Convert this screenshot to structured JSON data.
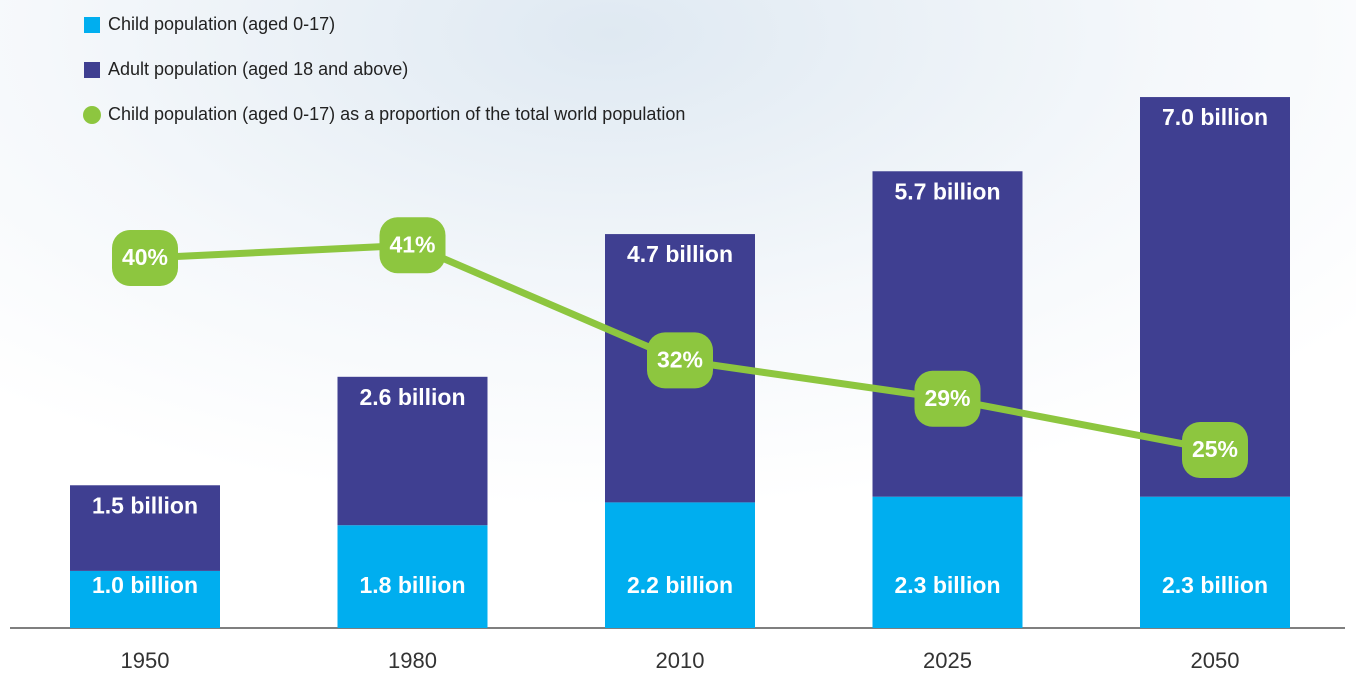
{
  "chart_data": {
    "type": "bar",
    "stacked": true,
    "categories": [
      "1950",
      "1980",
      "2010",
      "2025",
      "2050"
    ],
    "ylim": [
      0,
      11
    ],
    "y2lim": [
      0,
      60
    ],
    "series": [
      {
        "name": "Child population (aged 0-17)",
        "color": "#00aeef",
        "values": [
          1.0,
          1.8,
          2.2,
          2.3,
          2.3
        ],
        "value_labels": [
          "1.0 billion",
          "1.8 billion",
          "2.2 billion",
          "2.3 billion",
          "2.3 billion"
        ]
      },
      {
        "name": "Adult population (aged 18 and above)",
        "color": "#3f3f91",
        "values": [
          1.5,
          2.6,
          4.7,
          5.7,
          7.0
        ],
        "value_labels": [
          "1.5 billion",
          "2.6 billion",
          "4.7 billion",
          "5.7 billion",
          "7.0 billion"
        ]
      },
      {
        "name": "Child population (aged 0-17) as a proportion of the total world population",
        "color": "#8dc63f",
        "type": "line",
        "axis": "y2",
        "values": [
          40,
          41,
          32,
          29,
          25
        ],
        "value_labels": [
          "40%",
          "41%",
          "32%",
          "29%",
          "25%"
        ]
      }
    ]
  }
}
